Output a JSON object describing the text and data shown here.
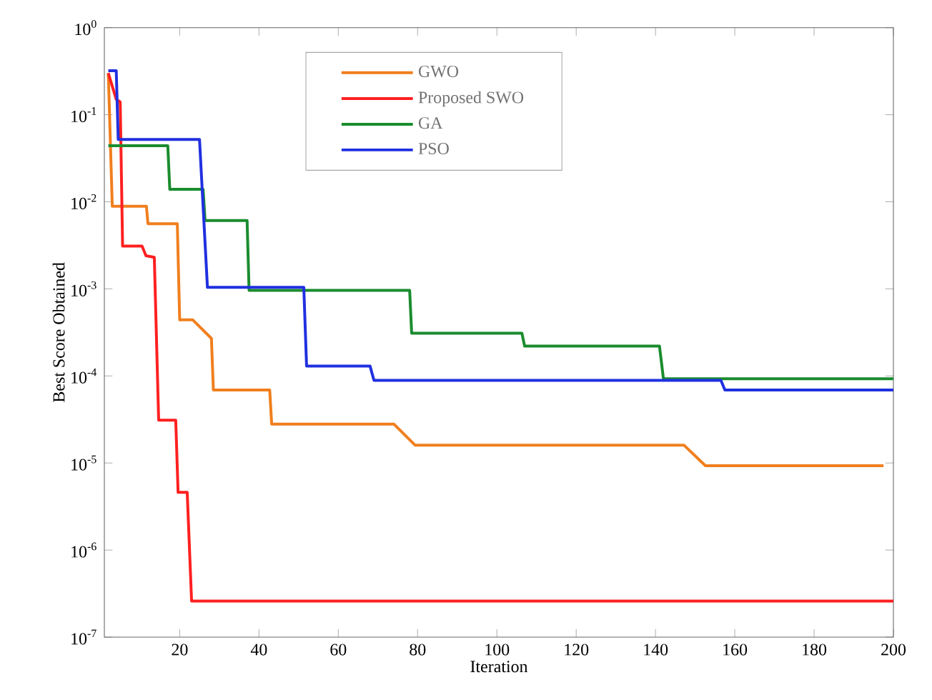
{
  "chart_data": {
    "type": "line",
    "xlabel": "Iteration",
    "ylabel": "Best Score Obtained",
    "log": "y",
    "grid": false,
    "legend": "top",
    "line_style": "solid",
    "marker": "none",
    "xlim": [
      1,
      200
    ],
    "xticks": [
      20,
      40,
      60,
      80,
      100,
      120,
      140,
      160,
      180,
      200
    ],
    "ylim": [
      1e-07,
      1
    ],
    "yticks": [
      {
        "value": 1e-07,
        "label": "10$^{-7}$"
      },
      {
        "value": 1e-06,
        "label": "10$^{-6}$"
      },
      {
        "value": 1e-05,
        "label": "10$^{-5}$"
      },
      {
        "value": 0.0001,
        "label": "10$^{-4}$"
      },
      {
        "value": 0.001,
        "label": "10$^{-3}$"
      },
      {
        "value": 0.01,
        "label": "10$^{-2}$"
      },
      {
        "value": 0.1,
        "label": "10$^{-1}$"
      },
      {
        "value": 1,
        "label": "10$^{0}$"
      }
    ],
    "series": [
      {
        "name": "GWO",
        "color": "#f07f1e",
        "x": [
          2,
          3,
          11.6,
          12,
          19.4,
          20,
          23.3,
          28,
          28.5,
          42.7,
          43.2,
          74,
          79.4,
          147.2,
          152.6,
          197.5
        ],
        "values": [
          0.3,
          0.0089,
          0.0089,
          0.0056,
          0.0056,
          0.00044,
          0.00044,
          0.00027,
          6.9e-05,
          6.9e-05,
          2.8e-05,
          2.8e-05,
          1.6e-05,
          1.6e-05,
          9.3e-06,
          9.3e-06
        ]
      },
      {
        "name": "Proposed SWO",
        "color": "#ff2020",
        "x": [
          2,
          4,
          5,
          5.6,
          10.5,
          11.5,
          13.6,
          14.7,
          19,
          19.6,
          21.9,
          23,
          200
        ],
        "values": [
          0.3,
          0.15,
          0.14,
          0.0031,
          0.0031,
          0.0024,
          0.0023,
          3.1e-05,
          3.1e-05,
          4.6e-06,
          4.6e-06,
          2.6e-07,
          2.6e-07
        ]
      },
      {
        "name": "GA",
        "color": "#1a8c2e",
        "x": [
          2,
          17,
          17.5,
          25.9,
          26.4,
          37,
          37.5,
          78,
          78.5,
          106.3,
          107,
          141,
          142,
          200
        ],
        "values": [
          0.044,
          0.044,
          0.0139,
          0.0139,
          0.0061,
          0.0061,
          0.00096,
          0.00096,
          0.00031,
          0.00031,
          0.00022,
          0.00022,
          9.3e-05,
          9.3e-05
        ]
      },
      {
        "name": "PSO",
        "color": "#2030e0",
        "x": [
          2,
          4,
          4.5,
          25,
          27,
          51.3,
          52,
          68,
          69,
          156.5,
          157.5,
          200
        ],
        "values": [
          0.32,
          0.32,
          0.052,
          0.052,
          0.00104,
          0.00104,
          0.00013,
          0.00013,
          8.9e-05,
          8.9e-05,
          6.9e-05,
          6.9e-05
        ]
      }
    ]
  }
}
